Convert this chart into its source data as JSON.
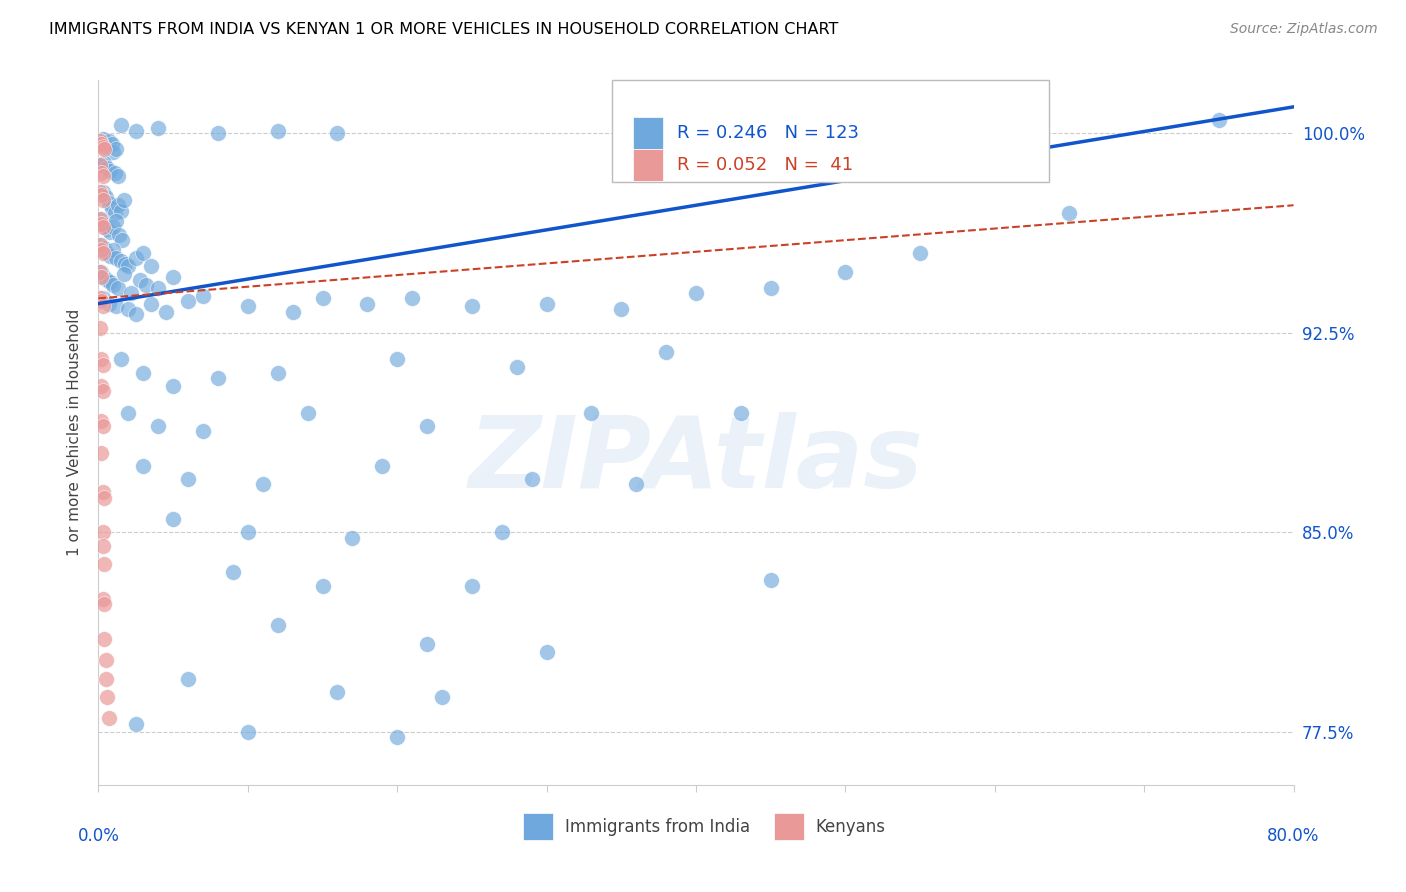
{
  "title": "IMMIGRANTS FROM INDIA VS KENYAN 1 OR MORE VEHICLES IN HOUSEHOLD CORRELATION CHART",
  "source": "Source: ZipAtlas.com",
  "ylabel": "1 or more Vehicles in Household",
  "xmin": 0.0,
  "xmax": 80.0,
  "ymin": 75.5,
  "ymax": 102.0,
  "R_blue": 0.246,
  "N_blue": 123,
  "R_pink": 0.052,
  "N_pink": 41,
  "blue_color": "#6fa8dc",
  "pink_color": "#ea9999",
  "blue_line_color": "#1155cc",
  "pink_line_color": "#cc4125",
  "blue_scatter_x": [
    0.3,
    0.5,
    0.7,
    0.9,
    1.0,
    1.2,
    0.2,
    0.4,
    0.6,
    0.8,
    1.1,
    1.3,
    0.3,
    0.5,
    0.7,
    0.9,
    1.1,
    1.3,
    1.5,
    1.7,
    0.2,
    0.4,
    0.6,
    0.8,
    1.0,
    1.2,
    1.4,
    1.6,
    0.2,
    0.4,
    0.6,
    0.8,
    1.0,
    1.2,
    1.5,
    1.8,
    2.0,
    2.5,
    3.0,
    3.5,
    0.2,
    0.4,
    0.6,
    0.8,
    1.0,
    1.3,
    1.7,
    2.2,
    2.8,
    3.2,
    4.0,
    5.0,
    0.3,
    0.7,
    1.2,
    2.0,
    2.5,
    3.5,
    4.5,
    6.0,
    7.0,
    10.0,
    13.0,
    15.0,
    18.0,
    21.0,
    25.0,
    30.0,
    35.0,
    40.0,
    45.0,
    50.0,
    55.0,
    65.0,
    75.0,
    1.5,
    3.0,
    5.0,
    8.0,
    12.0,
    20.0,
    28.0,
    38.0,
    2.0,
    4.0,
    7.0,
    14.0,
    22.0,
    33.0,
    43.0,
    3.0,
    6.0,
    11.0,
    19.0,
    29.0,
    36.0,
    5.0,
    10.0,
    17.0,
    27.0,
    9.0,
    15.0,
    25.0,
    45.0,
    12.0,
    22.0,
    30.0,
    6.0,
    16.0,
    23.0,
    2.5,
    10.0,
    20.0,
    1.5,
    2.5,
    4.0,
    8.0,
    12.0,
    16.0
  ],
  "blue_scatter_y": [
    99.8,
    99.5,
    99.7,
    99.6,
    99.3,
    99.4,
    98.8,
    98.9,
    98.7,
    98.6,
    98.5,
    98.4,
    97.8,
    97.6,
    97.4,
    97.2,
    97.0,
    97.3,
    97.1,
    97.5,
    96.8,
    96.6,
    96.4,
    96.3,
    96.5,
    96.7,
    96.2,
    96.0,
    95.8,
    95.7,
    95.5,
    95.4,
    95.6,
    95.3,
    95.2,
    95.1,
    95.0,
    95.3,
    95.5,
    95.0,
    94.8,
    94.6,
    94.5,
    94.4,
    94.3,
    94.2,
    94.7,
    94.0,
    94.5,
    94.3,
    94.2,
    94.6,
    93.8,
    93.6,
    93.5,
    93.4,
    93.2,
    93.6,
    93.3,
    93.7,
    93.9,
    93.5,
    93.3,
    93.8,
    93.6,
    93.8,
    93.5,
    93.6,
    93.4,
    94.0,
    94.2,
    94.8,
    95.5,
    97.0,
    100.5,
    91.5,
    91.0,
    90.5,
    90.8,
    91.0,
    91.5,
    91.2,
    91.8,
    89.5,
    89.0,
    88.8,
    89.5,
    89.0,
    89.5,
    89.5,
    87.5,
    87.0,
    86.8,
    87.5,
    87.0,
    86.8,
    85.5,
    85.0,
    84.8,
    85.0,
    83.5,
    83.0,
    83.0,
    83.2,
    81.5,
    80.8,
    80.5,
    79.5,
    79.0,
    78.8,
    77.8,
    77.5,
    77.3,
    100.3,
    100.1,
    100.2,
    100.0,
    100.1,
    100.0
  ],
  "pink_scatter_x": [
    0.1,
    0.2,
    0.3,
    0.4,
    0.1,
    0.2,
    0.3,
    0.1,
    0.2,
    0.3,
    0.1,
    0.2,
    0.3,
    0.1,
    0.2,
    0.3,
    0.1,
    0.2,
    0.1,
    0.2,
    0.3,
    0.1,
    0.2,
    0.3,
    0.2,
    0.3,
    0.2,
    0.3,
    0.2,
    0.3,
    0.4,
    0.3,
    0.3,
    0.4,
    0.3,
    0.4,
    0.4,
    0.5,
    0.5,
    0.6,
    0.7
  ],
  "pink_scatter_y": [
    99.7,
    99.6,
    99.5,
    99.4,
    98.8,
    98.5,
    98.4,
    97.8,
    97.7,
    97.5,
    96.8,
    96.6,
    96.5,
    95.8,
    95.6,
    95.5,
    94.8,
    94.6,
    93.8,
    93.7,
    93.5,
    92.7,
    91.5,
    91.3,
    90.5,
    90.3,
    89.2,
    89.0,
    88.0,
    86.5,
    86.3,
    85.0,
    84.5,
    83.8,
    82.5,
    82.3,
    81.0,
    80.2,
    79.5,
    78.8,
    78.0
  ],
  "blue_trend": [
    0.0,
    80.0,
    93.6,
    101.0
  ],
  "pink_trend": [
    0.0,
    80.0,
    93.8,
    97.3
  ],
  "legend_blue_label": "Immigrants from India",
  "legend_pink_label": "Kenyans",
  "watermark": "ZIPAtlas",
  "background_color": "#ffffff",
  "grid_color": "#cccccc",
  "tick_color": "#1155cc",
  "title_color": "#000000",
  "source_color": "#888888"
}
